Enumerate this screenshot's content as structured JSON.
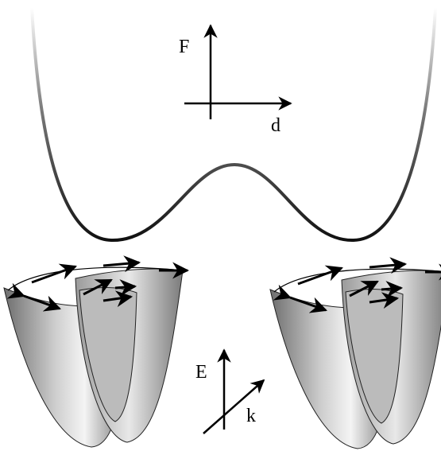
{
  "axes": {
    "top": {
      "vertical": "F",
      "horizontal": "d"
    },
    "bottom": {
      "vertical": "E",
      "diagonal": "k"
    }
  }
}
